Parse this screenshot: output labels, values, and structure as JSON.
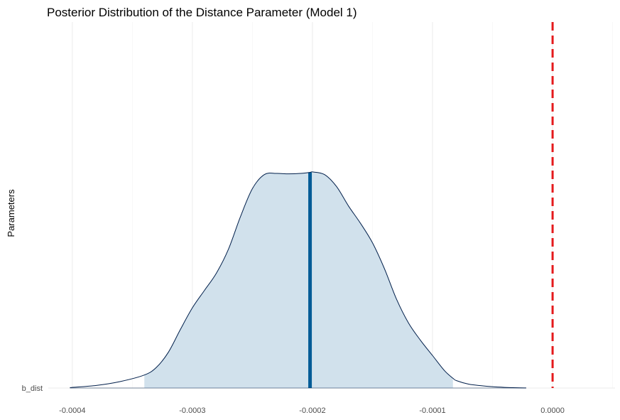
{
  "chart_data": {
    "type": "area",
    "title": "Posterior Distribution of the Distance Parameter (Model 1)",
    "xlabel": "",
    "ylabel": "Parameters",
    "xlim": [
      -0.00042,
      5.2e-05
    ],
    "x_ticks": [
      -0.0004,
      -0.0003,
      -0.0002,
      -0.0001,
      0.0
    ],
    "x_tick_labels": [
      "-0.0004",
      "-0.0003",
      "-0.0002",
      "-0.0001",
      "0.0000"
    ],
    "y_categories": [
      "b_dist"
    ],
    "grid": "vertical",
    "median": -0.000202,
    "interval": [
      -0.00034,
      -8.3e-05
    ],
    "reference_line": {
      "x": 0.0,
      "color": "#e41a1c",
      "style": "dashed"
    },
    "colors": {
      "fill": "#d1e1ec",
      "outline": "#011f4b",
      "median_line": "#005b96"
    },
    "series": [
      {
        "x": [
          -0.000402,
          -0.00038,
          -0.00036,
          -0.00034,
          -0.00033,
          -0.00032,
          -0.00031,
          -0.0003,
          -0.00029,
          -0.00028,
          -0.00027,
          -0.00026,
          -0.00025,
          -0.00024,
          -0.00023,
          -0.00022,
          -0.00021,
          -0.000202,
          -0.0002,
          -0.00019,
          -0.00018,
          -0.00017,
          -0.00016,
          -0.00015,
          -0.00014,
          -0.00013,
          -0.00012,
          -0.00011,
          -0.0001,
          -9e-05,
          -8.3e-05,
          -8e-05,
          -7e-05,
          -6e-05,
          -5e-05,
          -4e-05,
          -3e-05,
          -2.2e-05
        ],
        "density": [
          0.002,
          0.012,
          0.03,
          0.06,
          0.095,
          0.165,
          0.27,
          0.37,
          0.45,
          0.53,
          0.64,
          0.79,
          0.92,
          0.985,
          0.99,
          0.988,
          0.99,
          0.995,
          0.997,
          0.985,
          0.93,
          0.84,
          0.76,
          0.67,
          0.55,
          0.41,
          0.3,
          0.22,
          0.15,
          0.08,
          0.045,
          0.034,
          0.018,
          0.011,
          0.006,
          0.003,
          0.0012,
          0.0004
        ]
      }
    ]
  }
}
